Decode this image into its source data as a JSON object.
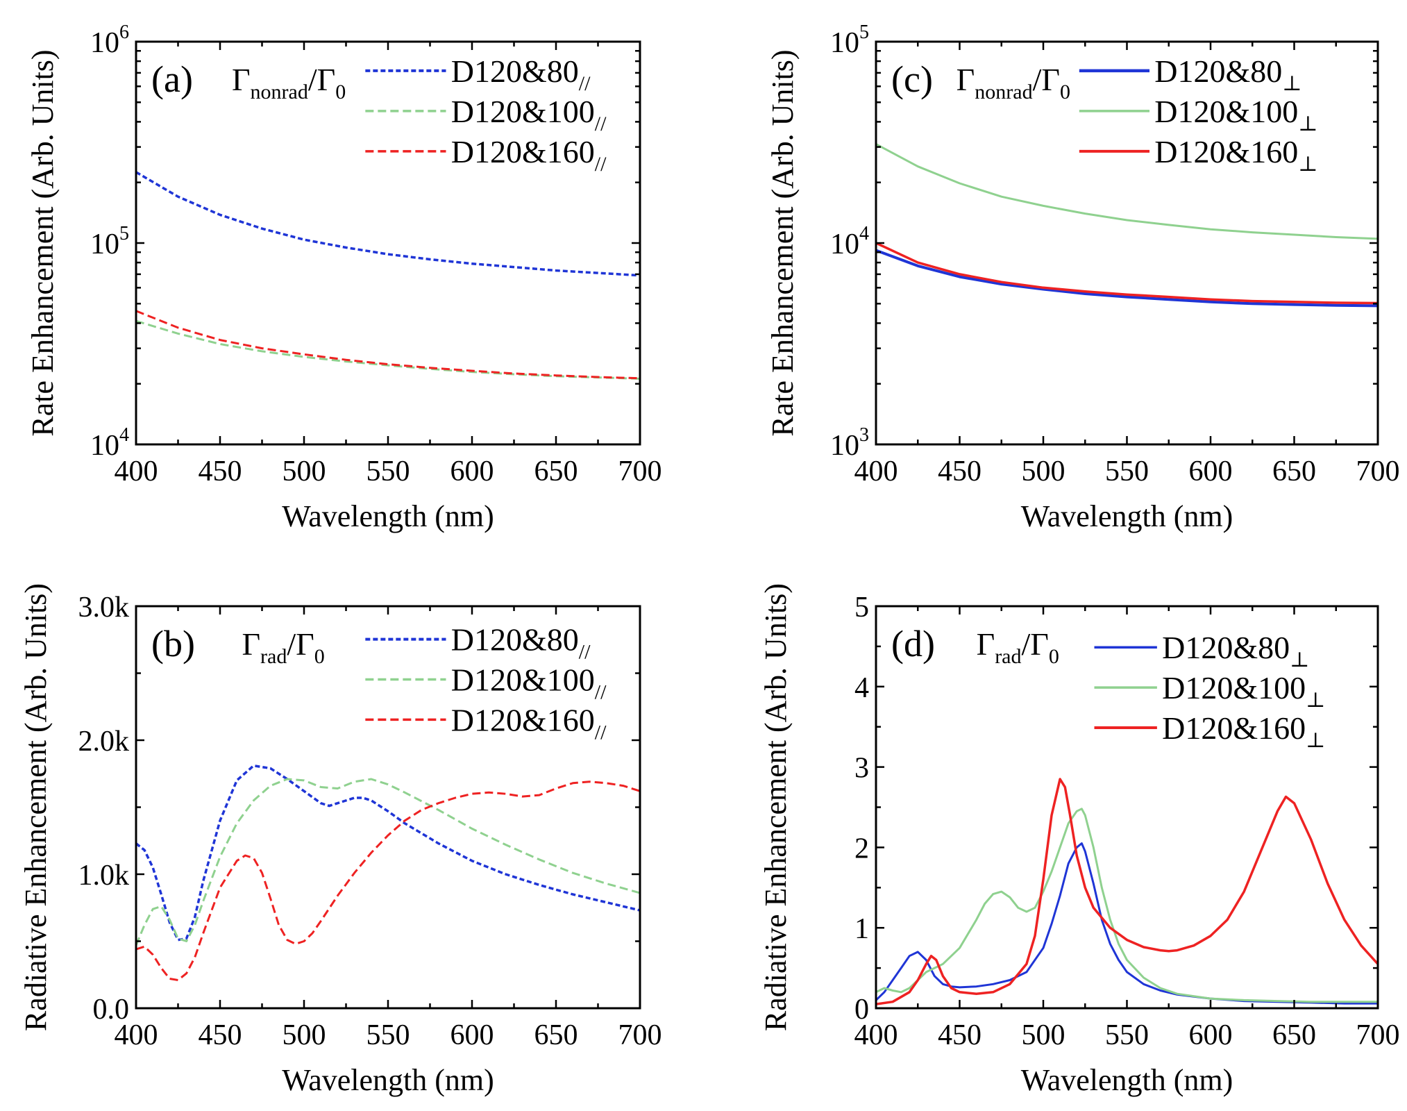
{
  "chart_data": [
    {
      "type": "line",
      "panel": "(a)",
      "annotation": "Γnonrad/Γ0",
      "annotation_main": "Γ",
      "annotation_sub": "nonrad",
      "annotation_tail": "/Γ",
      "annotation_tail_sub": "0",
      "xlabel": "Wavelength (nm)",
      "ylabel": "Rate Enhancement (Arb. Units)",
      "yscale": "log",
      "xlim": [
        400,
        700
      ],
      "ylim": [
        10000,
        1000000
      ],
      "x_ticks": [
        "400",
        "450",
        "500",
        "550",
        "600",
        "650",
        "700"
      ],
      "y_ticks": [
        {
          "base": "10",
          "exp": "4"
        },
        {
          "base": "10",
          "exp": "5"
        },
        {
          "base": "10",
          "exp": "6"
        }
      ],
      "x": [
        400,
        425,
        450,
        475,
        500,
        525,
        550,
        575,
        600,
        625,
        650,
        675,
        700
      ],
      "series": [
        {
          "name": "D120&80//",
          "label": "D120&80",
          "label_sub": "//",
          "color": "#1f35d6",
          "style": "dotted",
          "width": 3.5,
          "values": [
            225000,
            170000,
            138000,
            118000,
            104000,
            95000,
            88000,
            83000,
            79000,
            76000,
            73000,
            71000,
            69000
          ]
        },
        {
          "name": "D120&100//",
          "label": "D120&100",
          "label_sub": "//",
          "color": "#8fd18f",
          "style": "dashed",
          "width": 3,
          "values": [
            41000,
            35500,
            31500,
            29000,
            27200,
            25800,
            24700,
            23700,
            22900,
            22300,
            21800,
            21500,
            21200
          ]
        },
        {
          "name": "D120&160//",
          "label": "D120&160",
          "label_sub": "//",
          "color": "#ee2222",
          "style": "dashed",
          "width": 3,
          "values": [
            46000,
            38000,
            33000,
            30000,
            28000,
            26300,
            25000,
            24000,
            23200,
            22500,
            22000,
            21600,
            21300
          ]
        }
      ]
    },
    {
      "type": "line",
      "panel": "(b)",
      "annotation": "Γrad/Γ0",
      "annotation_main": "Γ",
      "annotation_sub": "rad",
      "annotation_tail": "/Γ",
      "annotation_tail_sub": "0",
      "xlabel": "Wavelength (nm)",
      "ylabel": "Radiative Enhancement (Arb. Units)",
      "yscale": "linear",
      "xlim": [
        400,
        700
      ],
      "ylim": [
        0,
        3000
      ],
      "x_ticks": [
        "400",
        "450",
        "500",
        "550",
        "600",
        "650",
        "700"
      ],
      "y_ticks": [
        {
          "value": 0,
          "label": "0.0"
        },
        {
          "value": 1000,
          "label": "1.0k"
        },
        {
          "value": 2000,
          "label": "2.0k"
        },
        {
          "value": 3000,
          "label": "3.0k"
        }
      ],
      "series": [
        {
          "name": "D120&80//",
          "label": "D120&80",
          "label_sub": "//",
          "color": "#1f35d6",
          "style": "dotted",
          "width": 3.5,
          "x": [
            400,
            405,
            410,
            415,
            420,
            425,
            430,
            435,
            440,
            450,
            460,
            470,
            480,
            490,
            500,
            510,
            515,
            520,
            530,
            535,
            540,
            550,
            560,
            580,
            600,
            620,
            640,
            660,
            680,
            700
          ],
          "values": [
            1230,
            1180,
            1050,
            850,
            640,
            510,
            520,
            680,
            950,
            1400,
            1700,
            1810,
            1790,
            1710,
            1620,
            1530,
            1510,
            1530,
            1570,
            1570,
            1550,
            1470,
            1380,
            1230,
            1100,
            1000,
            920,
            850,
            790,
            730
          ]
        },
        {
          "name": "D120&100//",
          "label": "D120&100",
          "label_sub": "//",
          "color": "#8fd18f",
          "style": "dashed",
          "width": 3,
          "x": [
            400,
            405,
            410,
            415,
            420,
            425,
            430,
            435,
            440,
            450,
            460,
            470,
            480,
            490,
            500,
            510,
            520,
            530,
            540,
            550,
            560,
            580,
            600,
            620,
            640,
            660,
            680,
            700
          ],
          "values": [
            470,
            620,
            740,
            760,
            660,
            520,
            500,
            620,
            800,
            1130,
            1380,
            1550,
            1660,
            1710,
            1700,
            1650,
            1640,
            1690,
            1710,
            1670,
            1610,
            1480,
            1340,
            1220,
            1110,
            1010,
            930,
            860
          ]
        },
        {
          "name": "D120&160//",
          "label": "D120&160",
          "label_sub": "//",
          "color": "#ee2222",
          "style": "dashed",
          "width": 3,
          "x": [
            400,
            405,
            410,
            415,
            420,
            425,
            430,
            435,
            440,
            450,
            460,
            465,
            470,
            475,
            480,
            485,
            490,
            495,
            500,
            505,
            510,
            520,
            530,
            540,
            550,
            560,
            570,
            580,
            590,
            600,
            610,
            620,
            630,
            640,
            650,
            660,
            670,
            680,
            690,
            700
          ],
          "values": [
            440,
            460,
            400,
            300,
            220,
            210,
            260,
            380,
            560,
            900,
            1100,
            1140,
            1120,
            1010,
            820,
            620,
            510,
            480,
            500,
            560,
            650,
            840,
            1010,
            1160,
            1290,
            1400,
            1480,
            1530,
            1570,
            1600,
            1610,
            1600,
            1580,
            1590,
            1640,
            1680,
            1690,
            1680,
            1660,
            1620
          ]
        }
      ]
    },
    {
      "type": "line",
      "panel": "(c)",
      "annotation": "Γnonrad/Γ0",
      "annotation_main": "Γ",
      "annotation_sub": "nonrad",
      "annotation_tail": "/Γ",
      "annotation_tail_sub": "0",
      "xlabel": "Wavelength (nm)",
      "ylabel": "Rate Enhancement (Arb. Units)",
      "yscale": "log",
      "xlim": [
        400,
        700
      ],
      "ylim": [
        1000,
        100000
      ],
      "x_ticks": [
        "400",
        "450",
        "500",
        "550",
        "600",
        "650",
        "700"
      ],
      "y_ticks": [
        {
          "base": "10",
          "exp": "3"
        },
        {
          "base": "10",
          "exp": "4"
        },
        {
          "base": "10",
          "exp": "5"
        }
      ],
      "x": [
        400,
        425,
        450,
        475,
        500,
        525,
        550,
        575,
        600,
        625,
        650,
        675,
        700
      ],
      "series": [
        {
          "name": "D120&80⊥",
          "label": "D120&80",
          "label_sub": "⊥",
          "color": "#1f35d6",
          "style": "solid",
          "width": 4,
          "values": [
            9200,
            7700,
            6800,
            6250,
            5900,
            5600,
            5400,
            5250,
            5100,
            5000,
            4950,
            4900,
            4880
          ]
        },
        {
          "name": "D120&100⊥",
          "label": "D120&100",
          "label_sub": "⊥",
          "color": "#8fd18f",
          "style": "solid",
          "width": 3,
          "values": [
            31000,
            24000,
            19800,
            17000,
            15300,
            14000,
            13000,
            12300,
            11700,
            11300,
            11000,
            10700,
            10500
          ]
        },
        {
          "name": "D120&160⊥",
          "label": "D120&160",
          "label_sub": "⊥",
          "color": "#ee2222",
          "style": "solid",
          "width": 3.5,
          "values": [
            10000,
            8000,
            7000,
            6400,
            6000,
            5750,
            5550,
            5400,
            5250,
            5150,
            5100,
            5050,
            5030
          ]
        }
      ]
    },
    {
      "type": "line",
      "panel": "(d)",
      "annotation": "Γrad/Γ0",
      "annotation_main": "Γ",
      "annotation_sub": "rad",
      "annotation_tail": "/Γ",
      "annotation_tail_sub": "0",
      "xlabel": "Wavelength (nm)",
      "ylabel": "Radiative Enhancement (Arb. Units)",
      "yscale": "linear",
      "xlim": [
        400,
        700
      ],
      "ylim": [
        0,
        5
      ],
      "x_ticks": [
        "400",
        "450",
        "500",
        "550",
        "600",
        "650",
        "700"
      ],
      "y_ticks": [
        {
          "value": 0,
          "label": "0"
        },
        {
          "value": 1,
          "label": "1"
        },
        {
          "value": 2,
          "label": "2"
        },
        {
          "value": 3,
          "label": "3"
        },
        {
          "value": 4,
          "label": "4"
        },
        {
          "value": 5,
          "label": "5"
        }
      ],
      "series": [
        {
          "name": "D120&80⊥",
          "label": "D120&80",
          "label_sub": "⊥",
          "color": "#1f35d6",
          "style": "solid",
          "width": 3,
          "x": [
            400,
            405,
            410,
            415,
            420,
            425,
            430,
            435,
            440,
            445,
            450,
            460,
            470,
            480,
            490,
            500,
            505,
            510,
            515,
            520,
            523,
            525,
            530,
            535,
            540,
            545,
            550,
            560,
            570,
            580,
            600,
            620,
            640,
            660,
            680,
            700
          ],
          "values": [
            0.1,
            0.2,
            0.35,
            0.5,
            0.65,
            0.7,
            0.6,
            0.4,
            0.3,
            0.27,
            0.26,
            0.27,
            0.3,
            0.35,
            0.45,
            0.75,
            1.05,
            1.4,
            1.8,
            2.0,
            2.05,
            1.95,
            1.55,
            1.1,
            0.8,
            0.6,
            0.45,
            0.3,
            0.22,
            0.17,
            0.12,
            0.09,
            0.08,
            0.07,
            0.06,
            0.06
          ]
        },
        {
          "name": "D120&100⊥",
          "label": "D120&100",
          "label_sub": "⊥",
          "color": "#8fd18f",
          "style": "solid",
          "width": 3,
          "x": [
            400,
            405,
            410,
            415,
            420,
            425,
            430,
            435,
            440,
            450,
            460,
            465,
            470,
            475,
            480,
            485,
            490,
            495,
            500,
            505,
            510,
            515,
            520,
            523,
            525,
            530,
            535,
            540,
            545,
            550,
            560,
            570,
            580,
            600,
            620,
            640,
            660,
            680,
            700
          ],
          "values": [
            0.2,
            0.25,
            0.22,
            0.2,
            0.25,
            0.35,
            0.45,
            0.5,
            0.55,
            0.75,
            1.1,
            1.3,
            1.42,
            1.45,
            1.38,
            1.25,
            1.2,
            1.25,
            1.45,
            1.7,
            2.0,
            2.3,
            2.45,
            2.48,
            2.4,
            2.0,
            1.5,
            1.1,
            0.8,
            0.6,
            0.38,
            0.25,
            0.18,
            0.12,
            0.1,
            0.09,
            0.08,
            0.08,
            0.08
          ]
        },
        {
          "name": "D120&160⊥",
          "label": "D120&160",
          "label_sub": "⊥",
          "color": "#ee2222",
          "style": "solid",
          "width": 3.5,
          "x": [
            400,
            410,
            420,
            425,
            430,
            433,
            436,
            440,
            445,
            450,
            460,
            470,
            480,
            490,
            495,
            500,
            505,
            510,
            513,
            516,
            520,
            525,
            530,
            540,
            550,
            560,
            570,
            575,
            580,
            590,
            600,
            610,
            620,
            630,
            640,
            645,
            650,
            660,
            670,
            680,
            690,
            700
          ],
          "values": [
            0.05,
            0.08,
            0.2,
            0.35,
            0.55,
            0.65,
            0.6,
            0.4,
            0.25,
            0.2,
            0.18,
            0.2,
            0.3,
            0.55,
            0.9,
            1.6,
            2.4,
            2.85,
            2.75,
            2.4,
            1.9,
            1.5,
            1.25,
            1.0,
            0.85,
            0.76,
            0.72,
            0.71,
            0.72,
            0.78,
            0.9,
            1.1,
            1.45,
            1.95,
            2.45,
            2.63,
            2.55,
            2.1,
            1.55,
            1.1,
            0.78,
            0.55
          ]
        }
      ]
    }
  ]
}
